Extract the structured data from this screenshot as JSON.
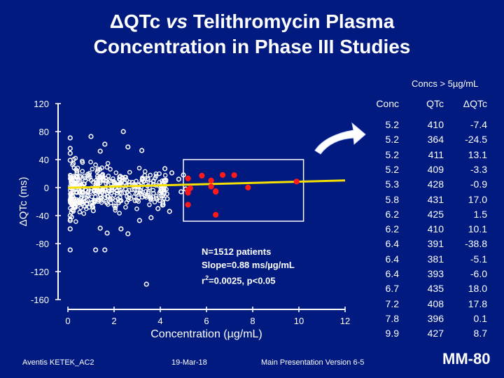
{
  "title": {
    "delta": "Δ",
    "qtc": "QTc ",
    "vs": "vs",
    "rest": " Telithromycin Plasma",
    "line2": "Concentration in Phase III Studies"
  },
  "chart_data": {
    "type": "scatter",
    "xlabel": "Concentration (µg/mL)",
    "ylabel": "ΔQTc  (ms)",
    "xlim": [
      0,
      12
    ],
    "ylim": [
      -160,
      120
    ],
    "xticks": [
      "0",
      "2",
      "4",
      "6",
      "8",
      "10",
      "12"
    ],
    "yticks": [
      "120",
      "80",
      "40",
      "0",
      "-40",
      "-80",
      "-120",
      "-160"
    ],
    "series": [
      {
        "color": "#ffffff",
        "marker": "open-circle",
        "points": [
          [
            0.1,
            71
          ],
          [
            0.1,
            56
          ],
          [
            0.1,
            49
          ],
          [
            0.1,
            39
          ],
          [
            0.1,
            -18
          ],
          [
            0.1,
            -40
          ],
          [
            0.1,
            -47
          ],
          [
            0.1,
            -59
          ],
          [
            0.1,
            -89
          ],
          [
            1.2,
            -89
          ],
          [
            1.6,
            -89
          ],
          [
            1.0,
            73
          ],
          [
            1.4,
            52
          ],
          [
            1.6,
            62
          ],
          [
            2.4,
            80
          ],
          [
            2.6,
            58
          ],
          [
            3.2,
            53
          ],
          [
            3.6,
            -43
          ],
          [
            3.9,
            -30
          ],
          [
            4.1,
            -25
          ],
          [
            4.3,
            -16
          ],
          [
            4.4,
            -34
          ],
          [
            4.2,
            27
          ],
          [
            4.5,
            21
          ],
          [
            4.8,
            12
          ],
          [
            5.0,
            18
          ],
          [
            4.9,
            -6
          ],
          [
            5.1,
            -2
          ],
          [
            3.4,
            -138
          ],
          [
            0.6,
            -20
          ],
          [
            1.1,
            -33
          ],
          [
            1.4,
            -58
          ],
          [
            1.7,
            -65
          ],
          [
            2.3,
            -59
          ],
          [
            2.6,
            -66
          ],
          [
            3.1,
            -47
          ]
        ],
        "band": {
          "x_min": 0.1,
          "x_max": 4.3,
          "y_min": -55,
          "y_max": 55
        }
      },
      {
        "color": "#ff1a1a",
        "marker": "filled-circle",
        "points": [
          [
            5.2,
            -7.4
          ],
          [
            5.2,
            -24.5
          ],
          [
            5.2,
            13.1
          ],
          [
            5.2,
            -3.3
          ],
          [
            5.3,
            -0.9
          ],
          [
            5.8,
            17.0
          ],
          [
            6.2,
            1.5
          ],
          [
            6.2,
            10.1
          ],
          [
            6.4,
            -38.8
          ],
          [
            6.4,
            -5.1
          ],
          [
            6.4,
            -6.0
          ],
          [
            6.7,
            18.0
          ],
          [
            7.2,
            17.8
          ],
          [
            7.8,
            0.1
          ],
          [
            9.9,
            8.7
          ]
        ]
      }
    ],
    "regression": {
      "slope": 0.88,
      "intercept": -0.3,
      "x_range": [
        0,
        12
      ],
      "color": "#f5e000"
    },
    "highlight_box": {
      "x_range": [
        5.0,
        10.2
      ],
      "y_range": [
        -48,
        40
      ]
    },
    "annotation": {
      "line1": "N=1512 patients",
      "line2": "Slope=0.88 ms/µg/mL",
      "line3_prefix": "r",
      "line3_sup": "2",
      "line3_suffix": "=0.0025, p<0.05"
    }
  },
  "table": {
    "caption": "Concs > 5µg/mL",
    "headers": [
      "Conc",
      "QTc",
      "ΔQTc"
    ],
    "rows": [
      [
        "5.2",
        "410",
        "-7.4"
      ],
      [
        "5.2",
        "364",
        "-24.5"
      ],
      [
        "5.2",
        "411",
        "13.1"
      ],
      [
        "5.2",
        "409",
        "-3.3"
      ],
      [
        "5.3",
        "428",
        "-0.9"
      ],
      [
        "5.8",
        "431",
        "17.0"
      ],
      [
        "6.2",
        "425",
        "1.5"
      ],
      [
        "6.2",
        "410",
        "10.1"
      ],
      [
        "6.4",
        "391",
        "-38.8"
      ],
      [
        "6.4",
        "381",
        "-5.1"
      ],
      [
        "6.4",
        "393",
        "-6.0"
      ],
      [
        "6.7",
        "435",
        "18.0"
      ],
      [
        "7.2",
        "408",
        "17.8"
      ],
      [
        "7.8",
        "396",
        "0.1"
      ],
      [
        "9.9",
        "427",
        "8.7"
      ]
    ]
  },
  "footer": {
    "left": "Aventis KETEK_AC2",
    "date": "19-Mar-18",
    "version": "Main Presentation Version 6-5",
    "slide_id": "MM-80"
  },
  "colors": {
    "background": "#001a80",
    "regression": "#f5e000",
    "highlight": "#ff1a1a"
  }
}
